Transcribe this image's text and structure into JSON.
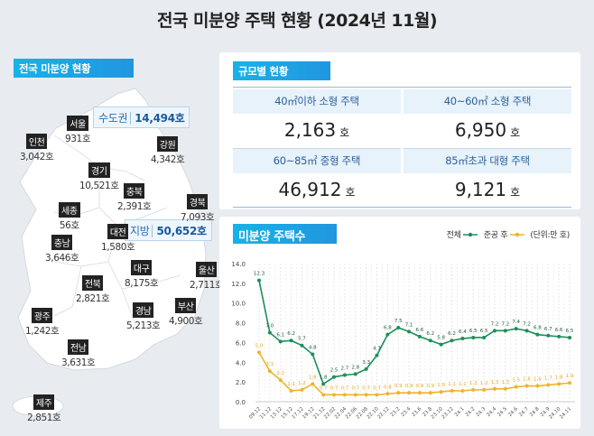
{
  "title": "전국 미분양 주택 현황 (2024년 11월)",
  "map_panel": {
    "tag": "전국 미분양 현황",
    "metro": {
      "label": "수도권",
      "value": "14,494호"
    },
    "local": {
      "label": "지방",
      "value": "50,652호"
    },
    "regions": [
      {
        "name": "서울",
        "value": "931호"
      },
      {
        "name": "인천",
        "value": "3,042호"
      },
      {
        "name": "강원",
        "value": "4,342호"
      },
      {
        "name": "경기",
        "value": "10,521호"
      },
      {
        "name": "충북",
        "value": "2,391호"
      },
      {
        "name": "경북",
        "value": "7,093호"
      },
      {
        "name": "세종",
        "value": "56호"
      },
      {
        "name": "대전",
        "value": "1,580호"
      },
      {
        "name": "충남",
        "value": "3,646호"
      },
      {
        "name": "대구",
        "value": "8,175호"
      },
      {
        "name": "울산",
        "value": "2,711호"
      },
      {
        "name": "전북",
        "value": "2,821호"
      },
      {
        "name": "경남",
        "value": "5,213호"
      },
      {
        "name": "부산",
        "value": "4,900호"
      },
      {
        "name": "광주",
        "value": "1,242호"
      },
      {
        "name": "전남",
        "value": "3,631호"
      },
      {
        "name": "제주",
        "value": "2,851호"
      }
    ]
  },
  "size_panel": {
    "tag": "규모별 현황",
    "unit": "호",
    "cells": [
      {
        "label": "40㎡이하 소형 주택",
        "value": "2,163"
      },
      {
        "label": "40~60㎡ 소형 주택",
        "value": "6,950"
      },
      {
        "label": "60~85㎡ 중형 주택",
        "value": "46,912"
      },
      {
        "label": "85㎡초과 대형 주택",
        "value": "9,121"
      }
    ]
  },
  "chart_panel": {
    "tag": "미분양 주택수",
    "unit_label": "(단위:만 호)"
  },
  "chart_data": {
    "type": "line",
    "ylim": [
      0,
      14
    ],
    "yticks": [
      "0.0",
      "2.0",
      "4.0",
      "6.0",
      "8.0",
      "10.0",
      "12.0",
      "14.0"
    ],
    "grid": true,
    "legend": "top-right",
    "categories": [
      "09.12",
      "11.12",
      "13.12",
      "15.12",
      "17.12",
      "19.12",
      "21.12",
      "22.02",
      "22.04",
      "22.06",
      "22.08",
      "22.10",
      "22.12",
      "23.2",
      "23.4",
      "23.6",
      "23.8",
      "23.10",
      "23.12",
      "24.1",
      "24.2",
      "24.3",
      "24.4",
      "24.5",
      "24.6",
      "24.7",
      "24.8",
      "24.9",
      "24.10",
      "24.11"
    ],
    "series": [
      {
        "name": "전체",
        "color": "#1a8f5a",
        "values": [
          12.3,
          7.0,
          6.1,
          6.2,
          5.7,
          4.8,
          1.8,
          2.5,
          2.7,
          2.8,
          3.3,
          4.7,
          6.8,
          7.5,
          7.1,
          6.6,
          6.2,
          5.8,
          6.2,
          6.4,
          6.5,
          6.5,
          7.2,
          7.2,
          7.4,
          7.2,
          6.8,
          6.7,
          6.6,
          6.5
        ]
      },
      {
        "name": "준공 후",
        "color": "#f0b429",
        "values": [
          5.0,
          3.1,
          2.2,
          1.1,
          1.2,
          1.8,
          0.7,
          0.7,
          0.7,
          0.7,
          0.7,
          0.7,
          0.8,
          0.9,
          0.9,
          0.9,
          0.9,
          1.0,
          1.1,
          1.1,
          1.2,
          1.2,
          1.3,
          1.3,
          1.5,
          1.6,
          1.6,
          1.7,
          1.8,
          1.9
        ]
      }
    ]
  }
}
